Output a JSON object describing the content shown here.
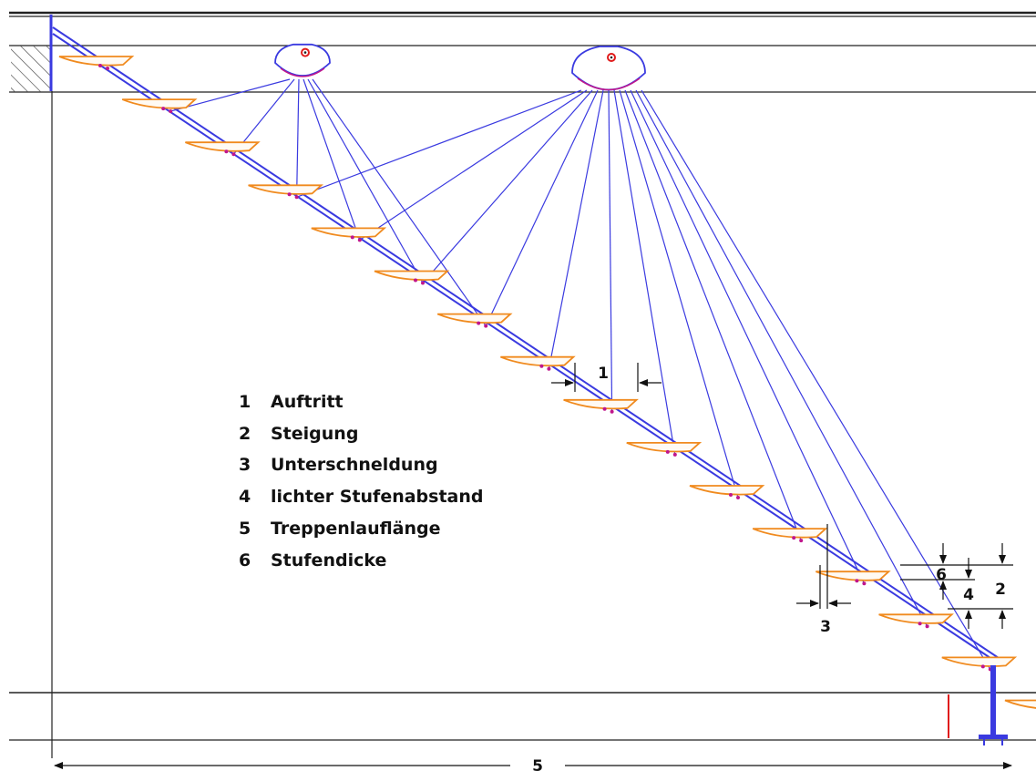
{
  "diagram": {
    "colors": {
      "structure": "#222222",
      "cable": "#3a3ae0",
      "step": "#f08a1e",
      "bolt": "#c0168c",
      "accent": "#e01b1b",
      "hatch": "#444444"
    },
    "step_count": 16,
    "pylon_count": 2,
    "legend": [
      {
        "number": "1",
        "label": "Auftritt"
      },
      {
        "number": "2",
        "label": "Steigung"
      },
      {
        "number": "3",
        "label": "Unterschneldung"
      },
      {
        "number": "4",
        "label": "lichter Stufenabstand"
      },
      {
        "number": "5",
        "label": "Treppenlauflänge"
      },
      {
        "number": "6",
        "label": "Stufendicke"
      }
    ],
    "dimensions": {
      "tread": "1",
      "rise": "2",
      "undercut": "3",
      "clear_spacing": "4",
      "run_length": "5",
      "step_thickness": "6"
    }
  }
}
